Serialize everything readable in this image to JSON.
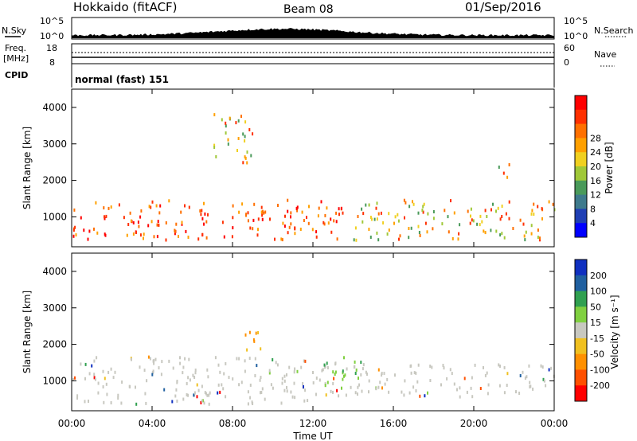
{
  "header": {
    "station": "Hokkaido (fitACF)",
    "beam": "Beam 08",
    "date": "01/Sep/2016"
  },
  "top_panels": {
    "nsky_label": "N.Sky",
    "nsearch_label": "N.Search",
    "freq_label_1": "Freq.",
    "freq_label_2": "[MHz]",
    "nave_label": "Nave",
    "cpid_label": "CPID",
    "cpid_value": "normal (fast) 151",
    "noise_ticks": [
      "10^5",
      "10^0"
    ],
    "freq_ticks": [
      "18",
      "8"
    ],
    "nave_ticks": [
      "60",
      "0"
    ]
  },
  "chart_data": [
    {
      "type": "heatmap",
      "name": "power",
      "ylabel": "Slant Range [km]",
      "xlabel": "",
      "x_ticks": [
        "00:00",
        "04:00",
        "08:00",
        "12:00",
        "16:00",
        "20:00",
        "00:00"
      ],
      "y_ticks": [
        1000,
        2000,
        3000,
        4000
      ],
      "ylim": [
        180,
        4500
      ],
      "colorbar": {
        "label": "Power [dB]",
        "ticks": [
          4,
          8,
          12,
          16,
          20,
          24,
          28
        ],
        "colors": [
          "#0000ff",
          "#1f3fb4",
          "#3e7a8c",
          "#4a9a5a",
          "#a0c838",
          "#f0d020",
          "#ffa000",
          "#ff7000",
          "#ff3000",
          "#ff0000"
        ]
      },
      "features": [
        {
          "x_hours": [
            0.0,
            13.5
          ],
          "range_km": [
            400,
            1500
          ],
          "level": "high"
        },
        {
          "x_hours": [
            7.0,
            9.0
          ],
          "range_km": [
            2500,
            3900
          ],
          "level": "mid"
        },
        {
          "x_hours": [
            14.0,
            24.0
          ],
          "range_km": [
            400,
            1500
          ],
          "level": "mixed"
        },
        {
          "x_hours": [
            21.0,
            21.8
          ],
          "range_km": [
            2100,
            2600
          ],
          "level": "mid"
        }
      ]
    },
    {
      "type": "heatmap",
      "name": "velocity",
      "ylabel": "Slant Range [km]",
      "xlabel": "Time UT",
      "x_ticks": [
        "00:00",
        "04:00",
        "08:00",
        "12:00",
        "16:00",
        "20:00",
        "00:00"
      ],
      "y_ticks": [
        1000,
        2000,
        3000,
        4000
      ],
      "ylim": [
        180,
        4500
      ],
      "colorbar": {
        "label": "Velocity [m s⁻¹]",
        "ticks": [
          200,
          100,
          50,
          15,
          -15,
          -50,
          -100,
          -200
        ],
        "colors": [
          "#1030c0",
          "#2060a0",
          "#30a050",
          "#80d040",
          "#c8c8c0",
          "#f0c020",
          "#ff9000",
          "#ff5000",
          "#ff0000"
        ]
      },
      "features": [
        {
          "x_hours": [
            0.0,
            14.0
          ],
          "range_km": [
            400,
            1700
          ],
          "level": "ground-scatter"
        },
        {
          "x_hours": [
            14.0,
            24.0
          ],
          "range_km": [
            600,
            1500
          ],
          "level": "ground-scatter"
        },
        {
          "x_hours": [
            8.5,
            9.5
          ],
          "range_km": [
            1700,
            2500
          ],
          "level": "negative"
        },
        {
          "x_hours": [
            12.5,
            14.5
          ],
          "range_km": [
            900,
            1700
          ],
          "level": "positive"
        }
      ]
    }
  ]
}
